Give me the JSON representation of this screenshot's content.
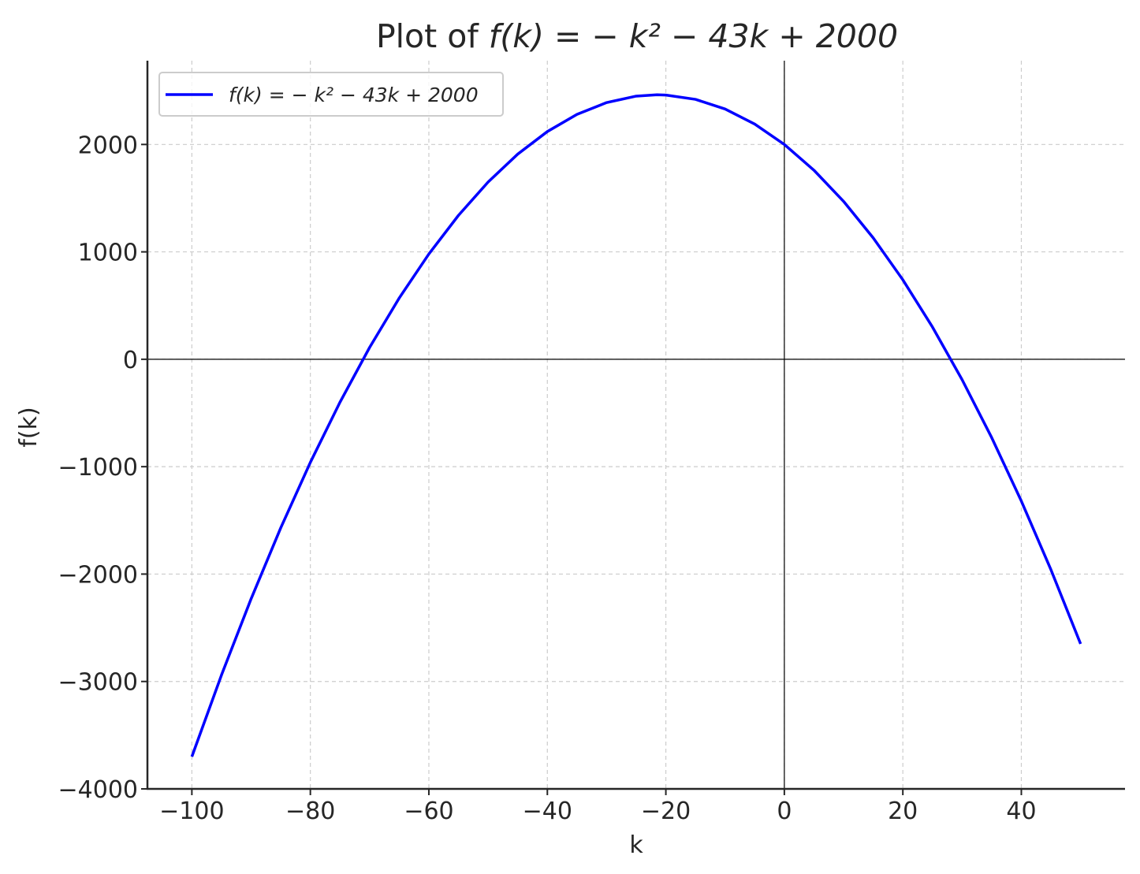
{
  "chart_data": {
    "type": "line",
    "title_prefix": "Plot of ",
    "title_math": "f(k) = − k² − 43k + 2000",
    "xlabel": "k",
    "ylabel": "f(k)",
    "xlim": [
      -107.5,
      57.5
    ],
    "ylim": [
      -4000,
      2780
    ],
    "xticks": [
      -100,
      -80,
      -60,
      -40,
      -20,
      0,
      20,
      40
    ],
    "xtick_labels": [
      "−100",
      "−80",
      "−60",
      "−40",
      "−20",
      "0",
      "20",
      "40"
    ],
    "yticks": [
      -4000,
      -3000,
      -2000,
      -1000,
      0,
      1000,
      2000
    ],
    "ytick_labels": [
      "−4000",
      "−3000",
      "−2000",
      "−1000",
      "0",
      "1000",
      "2000"
    ],
    "grid": true,
    "legend_position": "top-left",
    "series": [
      {
        "name": "f(k) = − k² − 43k + 2000",
        "color": "#0000ff",
        "x": [
          -100,
          -95,
          -90,
          -85,
          -80,
          -75,
          -70,
          -65,
          -60,
          -55,
          -50,
          -45,
          -40,
          -35,
          -30,
          -25,
          -21.5,
          -20,
          -15,
          -10,
          -5,
          0,
          5,
          10,
          15,
          20,
          25,
          30,
          35,
          40,
          45,
          50
        ],
        "y": [
          -3700,
          -2940,
          -2230,
          -1570,
          -960,
          -400,
          110,
          570,
          980,
          1340,
          1650,
          1910,
          2120,
          2280,
          2390,
          2450,
          2462.25,
          2460,
          2420,
          2330,
          2190,
          2000,
          1760,
          1470,
          1130,
          740,
          300,
          -190,
          -730,
          -1320,
          -1960,
          -2650
        ]
      }
    ],
    "colors": {
      "line": "#0000ff",
      "axis": "#000000",
      "grid": "#cccccc",
      "text": "#262626",
      "legend_border": "#cccccc"
    }
  }
}
